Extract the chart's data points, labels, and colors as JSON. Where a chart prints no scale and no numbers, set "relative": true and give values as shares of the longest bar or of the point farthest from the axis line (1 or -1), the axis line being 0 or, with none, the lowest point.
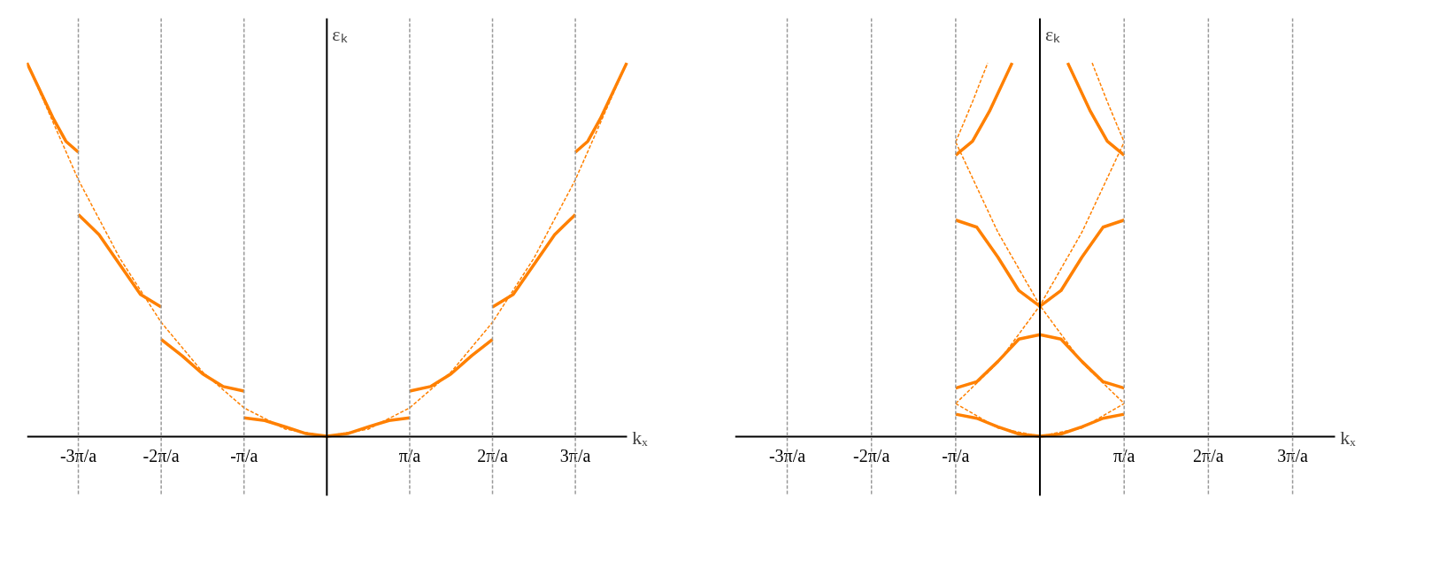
{
  "chart_data": [
    {
      "type": "line",
      "relative": true,
      "xlabel": "kₓ",
      "ylabel": "εₖ",
      "xlim": [
        -3.62,
        3.62
      ],
      "xticks": [
        {
          "value": -3,
          "label": "-3π/a"
        },
        {
          "value": -2,
          "label": "-2π/a"
        },
        {
          "value": -1,
          "label": "-π/a"
        },
        {
          "value": 1,
          "label": "π/a"
        },
        {
          "value": 2,
          "label": "2π/a"
        },
        {
          "value": 3,
          "label": "3π/a"
        }
      ],
      "ref_lines": [
        {
          "axis": "x",
          "value": -3,
          "color": "#999999",
          "line_style": "dashed"
        },
        {
          "axis": "x",
          "value": -2,
          "color": "#999999",
          "line_style": "dashed"
        },
        {
          "axis": "x",
          "value": -1,
          "color": "#999999",
          "line_style": "dashed"
        },
        {
          "axis": "x",
          "value": 1,
          "color": "#999999",
          "line_style": "dashed"
        },
        {
          "axis": "x",
          "value": 2,
          "color": "#999999",
          "line_style": "dashed"
        },
        {
          "axis": "x",
          "value": 3,
          "color": "#999999",
          "line_style": "dashed"
        }
      ],
      "series": [
        {
          "color": "#ff8000",
          "line_style": "dashed",
          "x": [
            -3.62,
            -3,
            -2.5,
            -2,
            -1.5,
            -1,
            -0.5,
            0,
            0.5,
            1,
            1.5,
            2,
            2.5,
            3,
            3.62
          ],
          "values": [
            1,
            0.687,
            0.477,
            0.305,
            0.172,
            0.076,
            0.019,
            0,
            0.019,
            0.076,
            0.172,
            0.305,
            0.477,
            0.687,
            1
          ]
        },
        {
          "color": "#ff8000",
          "line_style": "solid",
          "x": [
            -1,
            -0.75,
            -0.5,
            -0.25,
            0,
            0.25,
            0.5,
            0.75,
            1
          ],
          "values": [
            0.049,
            0.042,
            0.025,
            0.007,
            0,
            0.007,
            0.025,
            0.042,
            0.049
          ]
        },
        {
          "color": "#ff8000",
          "line_style": "solid",
          "x": [
            1,
            1.25,
            1.5,
            1.75,
            2
          ],
          "values": [
            0.121,
            0.133,
            0.167,
            0.216,
            0.259
          ]
        },
        {
          "color": "#ff8000",
          "line_style": "solid",
          "x": [
            -2,
            -1.75,
            -1.5,
            -1.25,
            -1
          ],
          "values": [
            0.259,
            0.216,
            0.167,
            0.133,
            0.121
          ]
        },
        {
          "color": "#ff8000",
          "line_style": "solid",
          "x": [
            2,
            2.25,
            2.5,
            2.75,
            3
          ],
          "values": [
            0.346,
            0.38,
            0.46,
            0.54,
            0.594
          ]
        },
        {
          "color": "#ff8000",
          "line_style": "solid",
          "x": [
            -3,
            -2.75,
            -2.5,
            -2.25,
            -2
          ],
          "values": [
            0.594,
            0.54,
            0.46,
            0.38,
            0.346
          ]
        },
        {
          "color": "#ff8000",
          "line_style": "solid",
          "x": [
            3,
            3.15,
            3.3,
            3.62
          ],
          "values": [
            0.761,
            0.79,
            0.85,
            1
          ]
        },
        {
          "color": "#ff8000",
          "line_style": "solid",
          "x": [
            -3.62,
            -3.3,
            -3.15,
            -3
          ],
          "values": [
            1,
            0.85,
            0.79,
            0.761
          ]
        }
      ]
    },
    {
      "type": "line",
      "relative": true,
      "xlabel": "kₓ",
      "ylabel": "εₖ",
      "xlim": [
        -3.62,
        3.5
      ],
      "xticks": [
        {
          "value": -3,
          "label": "-3π/a"
        },
        {
          "value": -2,
          "label": "-2π/a"
        },
        {
          "value": -1,
          "label": "-π/a"
        },
        {
          "value": 1,
          "label": "π/a"
        },
        {
          "value": 2,
          "label": "2π/a"
        },
        {
          "value": 3,
          "label": "3π/a"
        }
      ],
      "ref_lines": [
        {
          "axis": "x",
          "value": -3,
          "color": "#999999",
          "line_style": "dashed"
        },
        {
          "axis": "x",
          "value": -2,
          "color": "#999999",
          "line_style": "dashed"
        },
        {
          "axis": "x",
          "value": -1,
          "color": "#999999",
          "line_style": "dashed"
        },
        {
          "axis": "x",
          "value": 1,
          "color": "#999999",
          "line_style": "dashed"
        },
        {
          "axis": "x",
          "value": 2,
          "color": "#999999",
          "line_style": "dashed"
        },
        {
          "axis": "x",
          "value": 3,
          "color": "#999999",
          "line_style": "dashed"
        }
      ],
      "series": [
        {
          "color": "#ff8000",
          "line_style": "dashed",
          "x": [
            -1,
            -0.5,
            0,
            0.5,
            1
          ],
          "values": [
            0.0875,
            0.022,
            0,
            0.022,
            0.0875
          ]
        },
        {
          "color": "#ff8000",
          "line_style": "dashed",
          "x": [
            -1,
            -0.5,
            0,
            0.5,
            1
          ],
          "values": [
            0.0875,
            0.197,
            0.35,
            0.547,
            0.788
          ]
        },
        {
          "color": "#ff8000",
          "line_style": "dashed",
          "x": [
            -1,
            -0.5,
            0,
            0.5,
            1
          ],
          "values": [
            0.788,
            0.547,
            0.35,
            0.197,
            0.0875
          ]
        },
        {
          "color": "#ff8000",
          "line_style": "dashed",
          "x": [
            -1,
            -0.8,
            -0.62
          ],
          "values": [
            0.788,
            0.896,
            1
          ]
        },
        {
          "color": "#ff8000",
          "line_style": "dashed",
          "x": [
            0.62,
            0.8,
            1
          ],
          "values": [
            1,
            0.896,
            0.788
          ]
        },
        {
          "color": "#ff8000",
          "line_style": "solid",
          "x": [
            -1,
            -0.75,
            -0.5,
            -0.25,
            0,
            0.25,
            0.5,
            0.75,
            1
          ],
          "values": [
            0.059,
            0.048,
            0.025,
            0.006,
            0,
            0.006,
            0.025,
            0.048,
            0.059
          ]
        },
        {
          "color": "#ff8000",
          "line_style": "solid",
          "x": [
            -1,
            -0.75,
            -0.5,
            -0.25,
            0,
            0.25,
            0.5,
            0.75,
            1
          ],
          "values": [
            0.129,
            0.146,
            0.2,
            0.26,
            0.272,
            0.26,
            0.2,
            0.146,
            0.129
          ]
        },
        {
          "color": "#ff8000",
          "line_style": "solid",
          "x": [
            -1,
            -0.75,
            -0.5,
            -0.25,
            0,
            0.25,
            0.5,
            0.75,
            1
          ],
          "values": [
            0.579,
            0.56,
            0.48,
            0.39,
            0.348,
            0.39,
            0.48,
            0.56,
            0.579
          ]
        },
        {
          "color": "#ff8000",
          "line_style": "solid",
          "x": [
            -1,
            -0.8,
            -0.6,
            -0.33
          ],
          "values": [
            0.753,
            0.79,
            0.87,
            1
          ]
        },
        {
          "color": "#ff8000",
          "line_style": "solid",
          "x": [
            0.33,
            0.6,
            0.8,
            1
          ],
          "values": [
            1,
            0.87,
            0.79,
            0.753
          ]
        }
      ]
    }
  ]
}
